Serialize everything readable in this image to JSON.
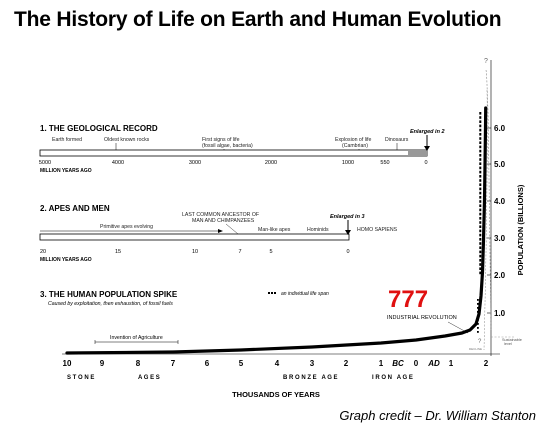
{
  "title": "The History of Life on Earth and Human Evolution",
  "credit": "Graph credit – Dr. William Stanton",
  "geological": {
    "heading": "1. THE GEOLOGICAL RECORD",
    "events": [
      "Earth formed",
      "Oldest known rocks",
      "First signs of life",
      "(fossil algae, bacteria)",
      "Explosion of life",
      "(Cambrian)",
      "Dinosaurs"
    ],
    "enlarged": "Enlarged in 2",
    "ticks": [
      "5000",
      "4000",
      "3000",
      "2000",
      "1000",
      "550",
      "0"
    ],
    "unit": "MILLION YEARS AGO"
  },
  "apes": {
    "heading": "2. APES AND MEN",
    "events": [
      "Primitive apes evolving",
      "LAST COMMON ANCESTOR OF",
      "MAN AND CHIMPANZEES",
      "Man-like apes",
      "Hominids",
      "HOMO SAPIENS"
    ],
    "enlarged": "Enlarged in 3",
    "ticks": [
      "20",
      "15",
      "10",
      "7",
      "5",
      "0"
    ],
    "unit": "MILLION YEARS AGO"
  },
  "spike": {
    "heading": "3. THE HUMAN POPULATION SPIKE",
    "subheading": "Caused by exploitation, then exhaustion, of fossil fuels",
    "legend": "an individual life span",
    "agriculture": "Invention of Agriculture",
    "industrial": "INDUSTRIAL REVOLUTION",
    "mark": "777",
    "sustainable": [
      "Sustainable",
      "level"
    ],
    "decline": "DECLINE",
    "ticks": [
      "10",
      "9",
      "8",
      "7",
      "6",
      "5",
      "4",
      "3",
      "2",
      "1",
      "BC",
      "0",
      "AD",
      "1",
      "2"
    ],
    "ages": [
      "S T O N E",
      "A G E S",
      "B R O N Z E   A G E",
      "I R O N   A G E"
    ],
    "xlabel": "THOUSANDS OF YEARS",
    "ylabel": "POPULATION (BILLIONS)",
    "yticks": [
      "1.0",
      "2.0",
      "3.0",
      "4.0",
      "5.0",
      "6.0"
    ],
    "question_marks": [
      "?",
      "?"
    ]
  },
  "colors": {
    "accent": "#e01010",
    "ink": "#000000",
    "grey": "#888888"
  }
}
